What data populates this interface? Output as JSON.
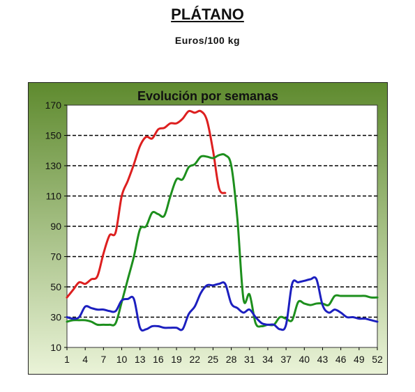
{
  "header": {
    "title": "PLÁTANO",
    "subtitle": "Euros/100 kg"
  },
  "colors": {
    "panel_top": "#5e8a2e",
    "panel_bottom": "#eaf3d8",
    "plot_bg": "#ffffff",
    "grid": "#000000"
  },
  "chart_data": {
    "type": "line",
    "title": "Evolución por semanas",
    "xlabel": "",
    "ylabel": "",
    "xlim": [
      1,
      52
    ],
    "ylim": [
      10,
      170
    ],
    "x_ticks": [
      1,
      4,
      7,
      10,
      13,
      16,
      19,
      22,
      25,
      28,
      31,
      34,
      37,
      40,
      43,
      46,
      49,
      52
    ],
    "y_ticks": [
      10,
      30,
      50,
      70,
      90,
      110,
      130,
      150,
      170
    ],
    "grid": "horizontal dashed",
    "legend": "none",
    "series": [
      {
        "color": "#dd1f1f",
        "x": [
          1,
          2,
          3,
          4,
          5,
          6,
          7,
          8,
          9,
          10,
          11,
          12,
          13,
          14,
          15,
          16,
          17,
          18,
          19,
          20,
          21,
          22,
          23,
          24,
          25,
          26,
          27
        ],
        "values": [
          43,
          48,
          53,
          52,
          55,
          57,
          72,
          84,
          86,
          110,
          120,
          131,
          143,
          149,
          148,
          154,
          155,
          158,
          158,
          161,
          166,
          165,
          166,
          160,
          140,
          115,
          112
        ]
      },
      {
        "color": "#1d8f1d",
        "x": [
          1,
          2,
          3,
          4,
          5,
          6,
          7,
          8,
          9,
          10,
          11,
          12,
          13,
          14,
          15,
          16,
          17,
          18,
          19,
          20,
          21,
          22,
          23,
          24,
          25,
          26,
          27,
          28,
          29,
          30,
          31,
          32,
          33,
          34,
          35,
          36,
          37,
          38,
          39,
          40,
          41,
          42,
          43,
          44,
          45,
          46,
          47,
          48,
          49,
          50,
          51,
          52
        ],
        "values": [
          27,
          28,
          28,
          28,
          27,
          25,
          25,
          25,
          26,
          40,
          55,
          70,
          88,
          90,
          99,
          98,
          97,
          110,
          121,
          121,
          129,
          131,
          136,
          136,
          135,
          137,
          137,
          130,
          95,
          42,
          45,
          26,
          24,
          25,
          25,
          30,
          29,
          28,
          40,
          39,
          38,
          39,
          39,
          38,
          44,
          44,
          44,
          44,
          44,
          44,
          43,
          43
        ]
      },
      {
        "color": "#1c1fbf",
        "x": [
          1,
          2,
          3,
          4,
          5,
          6,
          7,
          8,
          9,
          10,
          11,
          12,
          13,
          14,
          15,
          16,
          17,
          18,
          19,
          20,
          21,
          22,
          23,
          24,
          25,
          26,
          27,
          28,
          29,
          30,
          31,
          32,
          33,
          34,
          35,
          36,
          37,
          38,
          39,
          40,
          41,
          42,
          43,
          44,
          45,
          46,
          47,
          48,
          49,
          50,
          51,
          52
        ],
        "values": [
          30,
          29,
          30,
          37,
          36,
          35,
          35,
          34,
          34,
          41,
          42,
          42,
          23,
          22,
          24,
          24,
          23,
          23,
          23,
          22,
          32,
          37,
          46,
          51,
          51,
          52,
          52,
          39,
          36,
          33,
          35,
          30,
          26,
          25,
          25,
          22,
          25,
          52,
          53,
          54,
          55,
          55,
          38,
          33,
          35,
          33,
          30,
          30,
          29,
          29,
          28,
          27
        ]
      }
    ]
  }
}
